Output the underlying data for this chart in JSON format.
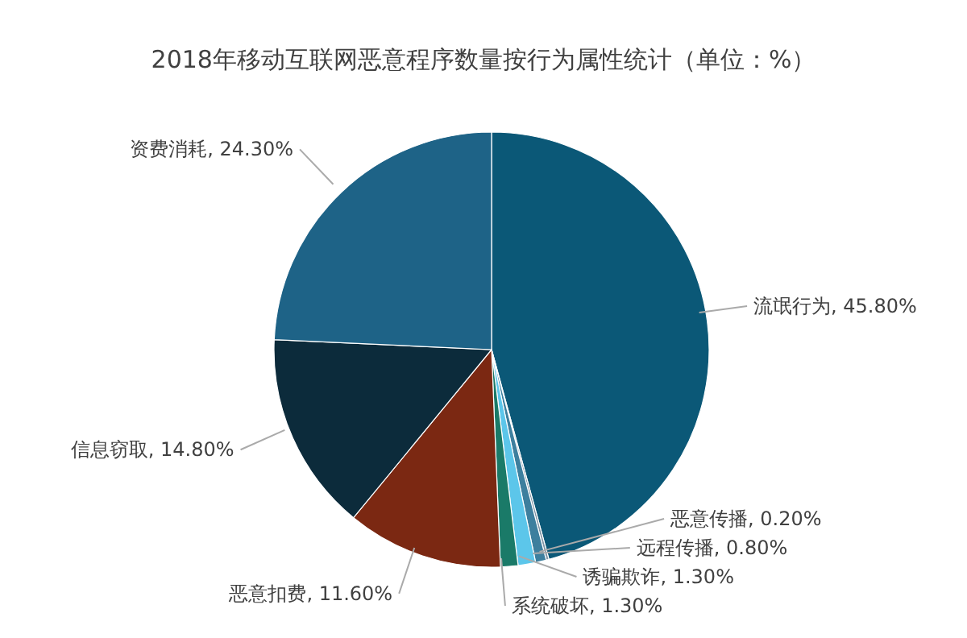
{
  "chart_data": {
    "type": "pie",
    "title": "2018年移动互联网恶意程序数量按行为属性统计（单位：%）",
    "categories": [
      "流氓行为",
      "恶意传播",
      "远程传播",
      "诱骗欺诈",
      "系统破坏",
      "恶意扣费",
      "信息窃取",
      "资费消耗"
    ],
    "values": [
      45.8,
      0.2,
      0.8,
      1.3,
      1.3,
      11.6,
      14.8,
      24.3
    ],
    "value_labels": [
      "45.80%",
      "0.20%",
      "0.80%",
      "1.30%",
      "1.30%",
      "11.60%",
      "14.80%",
      "24.30%"
    ],
    "colors": [
      "#0b5877",
      "#8296a6",
      "#3d7f9e",
      "#5cc6ea",
      "#1a7a68",
      "#7b2812",
      "#0c2b3b",
      "#1e6387"
    ]
  }
}
